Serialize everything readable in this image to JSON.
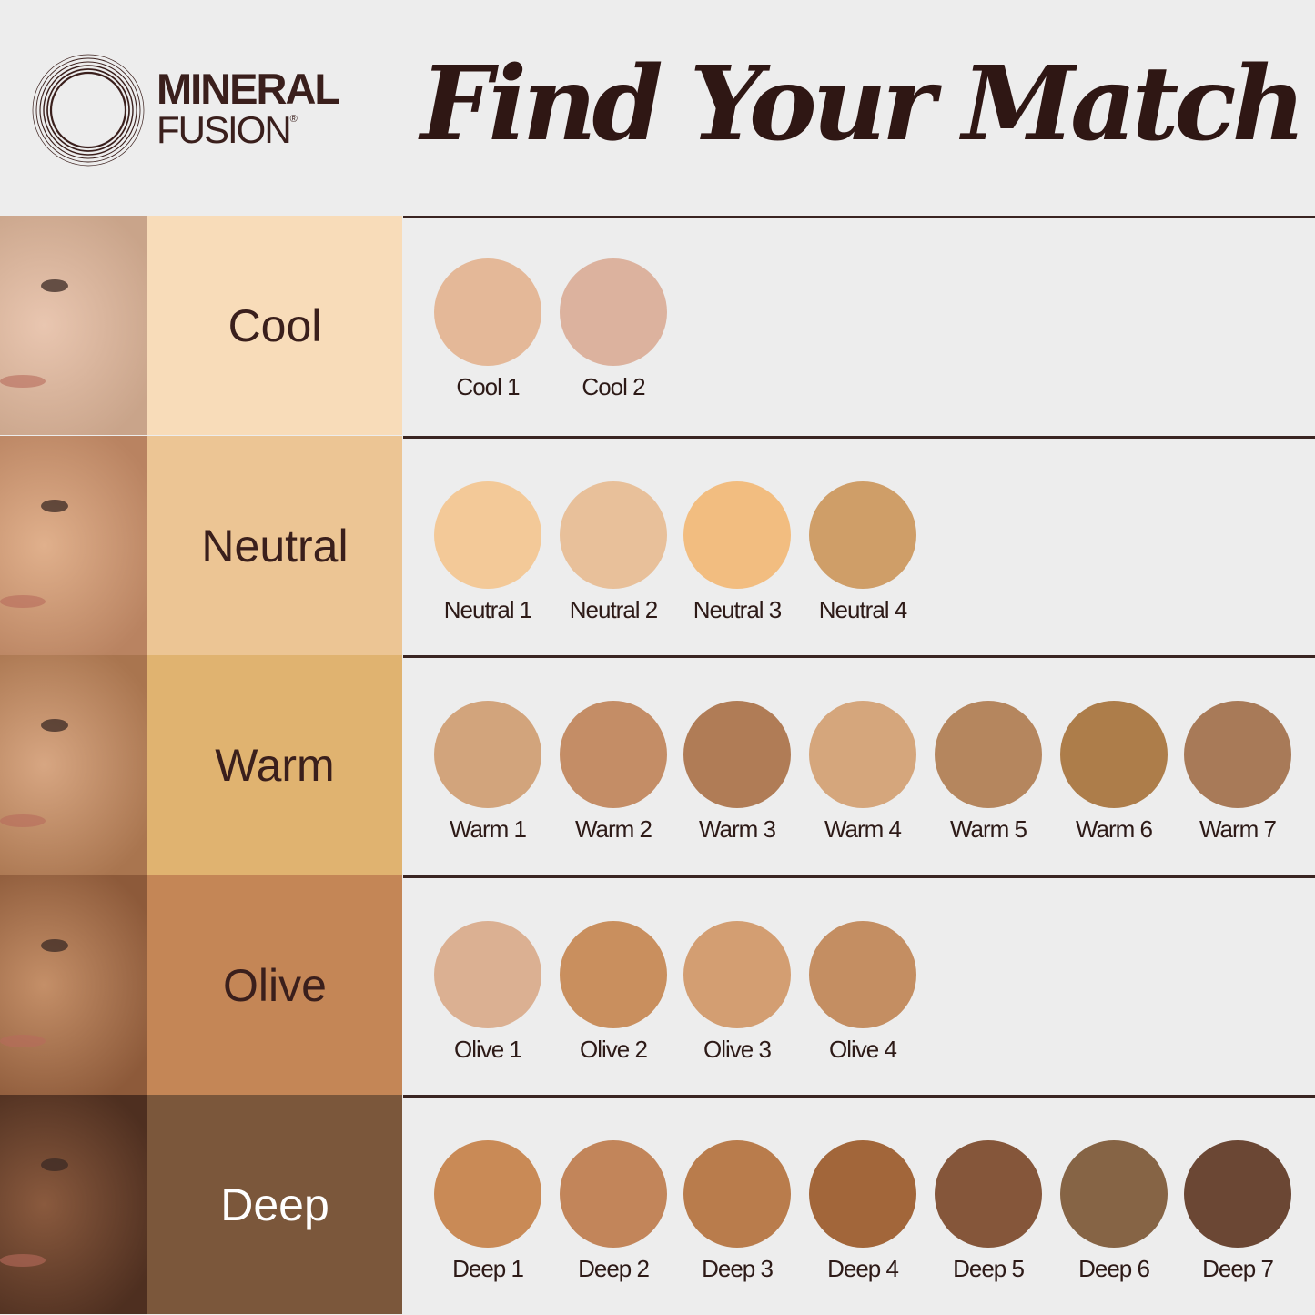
{
  "brand": {
    "line1": "MINERAL",
    "line2": "FUSION",
    "registered": "®"
  },
  "title": "Find Your Match",
  "tones": [
    {
      "name": "Cool",
      "bg": "#f8dcb9",
      "text": "#3a1f1c",
      "photo": [
        "#e9c6b0",
        "#c9a48a"
      ],
      "shades": [
        {
          "label": "Cool 1",
          "color": "#e4b898"
        },
        {
          "label": "Cool 2",
          "color": "#dcb29e"
        }
      ]
    },
    {
      "name": "Neutral",
      "bg": "#ecc594",
      "text": "#3a1f1c",
      "photo": [
        "#e0b08c",
        "#b98361"
      ],
      "shades": [
        {
          "label": "Neutral 1",
          "color": "#f3c998"
        },
        {
          "label": "Neutral 2",
          "color": "#e8c09a"
        },
        {
          "label": "Neutral 3",
          "color": "#f2bd80"
        },
        {
          "label": "Neutral 4",
          "color": "#cf9e68"
        }
      ]
    },
    {
      "name": "Warm",
      "bg": "#e0b370",
      "text": "#3a1f1c",
      "photo": [
        "#d7a682",
        "#a9754f"
      ],
      "shades": [
        {
          "label": "Warm 1",
          "color": "#d2a47c"
        },
        {
          "label": "Warm 2",
          "color": "#c48d66"
        },
        {
          "label": "Warm 3",
          "color": "#b07c56"
        },
        {
          "label": "Warm 4",
          "color": "#d5a67c"
        },
        {
          "label": "Warm 5",
          "color": "#b5865e"
        },
        {
          "label": "Warm 6",
          "color": "#ad7d4a"
        },
        {
          "label": "Warm 7",
          "color": "#a87a58"
        }
      ]
    },
    {
      "name": "Olive",
      "bg": "#c48656",
      "text": "#3a1f1c",
      "photo": [
        "#c48f68",
        "#8d5a3a"
      ],
      "shades": [
        {
          "label": "Olive 1",
          "color": "#dbb092"
        },
        {
          "label": "Olive 2",
          "color": "#c98f5e"
        },
        {
          "label": "Olive 3",
          "color": "#d39e72"
        },
        {
          "label": "Olive 4",
          "color": "#c48e62"
        }
      ]
    },
    {
      "name": "Deep",
      "bg": "#7b573b",
      "text": "#ffffff",
      "photo": [
        "#8a5a3e",
        "#4e2f20"
      ],
      "shades": [
        {
          "label": "Deep 1",
          "color": "#c98a56"
        },
        {
          "label": "Deep 2",
          "color": "#c2855a"
        },
        {
          "label": "Deep 3",
          "color": "#b97c4c"
        },
        {
          "label": "Deep 4",
          "color": "#a2663a"
        },
        {
          "label": "Deep 5",
          "color": "#85563a"
        },
        {
          "label": "Deep 6",
          "color": "#866445"
        },
        {
          "label": "Deep 7",
          "color": "#6b4734"
        }
      ]
    }
  ]
}
